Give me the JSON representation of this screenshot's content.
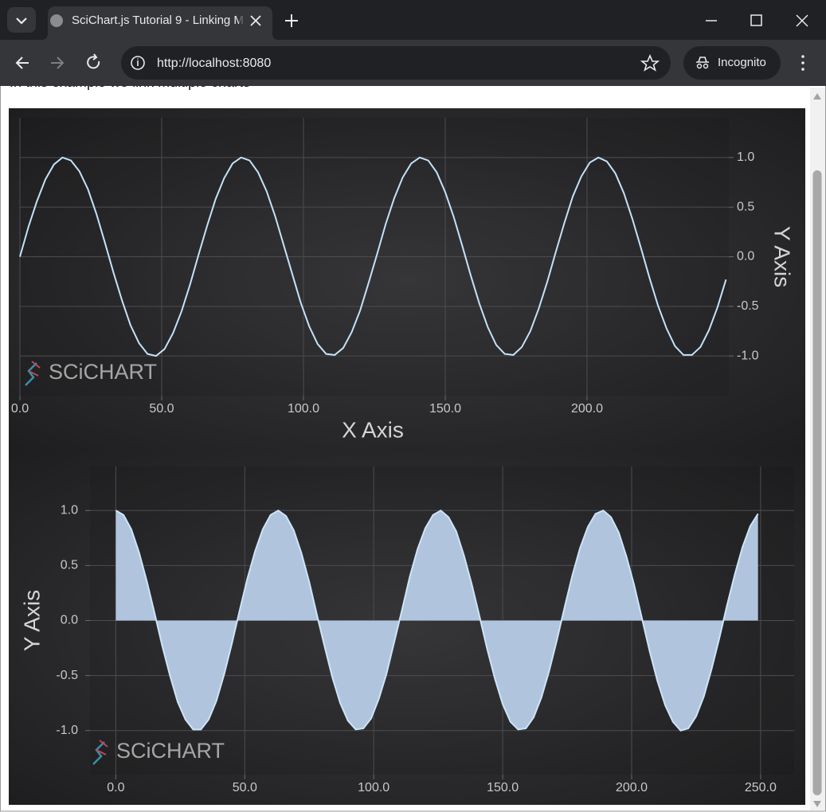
{
  "browser": {
    "tab_title": "SciChart.js Tutorial 9 - Linking M",
    "url": "http://localhost:8080",
    "profile": "Incognito"
  },
  "page": {
    "intro": "In this example we link multiple charts"
  },
  "chart_data": [
    {
      "type": "line",
      "watermark": "SCiCHART",
      "x_axis_title": "X Axis",
      "y_axis_title": "Y Axis",
      "y_axis_side": "right",
      "color": "#c4e2f8",
      "grid": true,
      "x": [
        0,
        3,
        6,
        9,
        12,
        15,
        18,
        21,
        24,
        27,
        30,
        33,
        36,
        39,
        42,
        45,
        48,
        51,
        54,
        57,
        60,
        63,
        66,
        69,
        72,
        75,
        78,
        81,
        84,
        87,
        90,
        93,
        96,
        99,
        102,
        105,
        108,
        111,
        114,
        117,
        120,
        123,
        126,
        129,
        132,
        135,
        138,
        141,
        144,
        147,
        150,
        153,
        156,
        159,
        162,
        165,
        168,
        171,
        174,
        177,
        180,
        183,
        186,
        189,
        192,
        195,
        198,
        201,
        204,
        207,
        210,
        213,
        216,
        219,
        222,
        225,
        228,
        231,
        234,
        237,
        240,
        243,
        246,
        249
      ],
      "values": [
        0,
        0.3,
        0.56,
        0.78,
        0.93,
        1,
        0.97,
        0.86,
        0.68,
        0.43,
        0.14,
        -0.16,
        -0.44,
        -0.69,
        -0.87,
        -0.98,
        -1,
        -0.93,
        -0.77,
        -0.55,
        -0.28,
        0.02,
        0.31,
        0.58,
        0.79,
        0.94,
        1,
        0.97,
        0.85,
        0.66,
        0.41,
        0.12,
        -0.17,
        -0.46,
        -0.7,
        -0.88,
        -0.98,
        -0.99,
        -0.92,
        -0.76,
        -0.54,
        -0.26,
        0.03,
        0.33,
        0.59,
        0.8,
        0.94,
        1,
        0.97,
        0.85,
        0.65,
        0.4,
        0.11,
        -0.19,
        -0.47,
        -0.71,
        -0.89,
        -0.98,
        -0.99,
        -0.91,
        -0.75,
        -0.52,
        -0.25,
        0.05,
        0.34,
        0.61,
        0.81,
        0.95,
        1,
        0.96,
        0.84,
        0.64,
        0.38,
        0.09,
        -0.21,
        -0.49,
        -0.72,
        -0.9,
        -0.99,
        -0.99,
        -0.91,
        -0.74,
        -0.51,
        -0.23
      ],
      "xlim": [
        0,
        250
      ],
      "ylim": [
        -1.4,
        1.4
      ],
      "xticks": [
        {
          "value": 0,
          "label": "0.0"
        },
        {
          "value": 50,
          "label": "50.0"
        },
        {
          "value": 100,
          "label": "100.0"
        },
        {
          "value": 150,
          "label": "150.0"
        },
        {
          "value": 200,
          "label": "200.0"
        }
      ],
      "yticks": [
        {
          "value": -1,
          "label": "-1.0"
        },
        {
          "value": -0.5,
          "label": "-0.5"
        },
        {
          "value": 0,
          "label": "0.0"
        },
        {
          "value": 0.5,
          "label": "0.5"
        },
        {
          "value": 1,
          "label": "1.0"
        }
      ]
    },
    {
      "type": "area",
      "watermark": "SCiCHART",
      "y_axis_title": "Y Axis",
      "y_axis_side": "left",
      "color": "#b0c4de",
      "grid": true,
      "x": [
        0,
        3,
        6,
        9,
        12,
        15,
        18,
        21,
        24,
        27,
        30,
        33,
        36,
        39,
        42,
        45,
        48,
        51,
        54,
        57,
        60,
        63,
        66,
        69,
        72,
        75,
        78,
        81,
        84,
        87,
        90,
        93,
        96,
        99,
        102,
        105,
        108,
        111,
        114,
        117,
        120,
        123,
        126,
        129,
        132,
        135,
        138,
        141,
        144,
        147,
        150,
        153,
        156,
        159,
        162,
        165,
        168,
        171,
        174,
        177,
        180,
        183,
        186,
        189,
        192,
        195,
        198,
        201,
        204,
        207,
        210,
        213,
        216,
        219,
        222,
        225,
        228,
        231,
        234,
        237,
        240,
        243,
        246,
        249
      ],
      "values": [
        1,
        0.96,
        0.83,
        0.62,
        0.36,
        0.07,
        -0.23,
        -0.5,
        -0.74,
        -0.9,
        -0.99,
        -0.99,
        -0.9,
        -0.73,
        -0.49,
        -0.21,
        0.09,
        0.38,
        0.63,
        0.83,
        0.96,
        1,
        0.95,
        0.82,
        0.61,
        0.35,
        0.05,
        -0.24,
        -0.52,
        -0.75,
        -0.91,
        -0.99,
        -0.98,
        -0.89,
        -0.71,
        -0.48,
        -0.19,
        0.1,
        0.4,
        0.65,
        0.84,
        0.96,
        1,
        0.94,
        0.81,
        0.59,
        0.33,
        0.04,
        -0.26,
        -0.53,
        -0.76,
        -0.92,
        -0.99,
        -0.98,
        -0.88,
        -0.7,
        -0.46,
        -0.18,
        0.12,
        0.41,
        0.66,
        0.85,
        0.97,
        1,
        0.94,
        0.8,
        0.58,
        0.32,
        0.02,
        -0.28,
        -0.55,
        -0.77,
        -0.92,
        -1,
        -0.98,
        -0.87,
        -0.69,
        -0.44,
        -0.16,
        0.14,
        0.42,
        0.67,
        0.86,
        0.97
      ],
      "xlim": [
        -10,
        263
      ],
      "ylim": [
        -1.4,
        1.4
      ],
      "xticks": [
        {
          "value": 0,
          "label": "0.0"
        },
        {
          "value": 50,
          "label": "50.0"
        },
        {
          "value": 100,
          "label": "100.0"
        },
        {
          "value": 150,
          "label": "150.0"
        },
        {
          "value": 200,
          "label": "200.0"
        },
        {
          "value": 250,
          "label": "250.0"
        }
      ],
      "yticks": [
        {
          "value": -1,
          "label": "-1.0"
        },
        {
          "value": -0.5,
          "label": "-0.5"
        },
        {
          "value": 0,
          "label": "0.0"
        },
        {
          "value": 0.5,
          "label": "0.5"
        },
        {
          "value": 1,
          "label": "1.0"
        }
      ]
    }
  ]
}
